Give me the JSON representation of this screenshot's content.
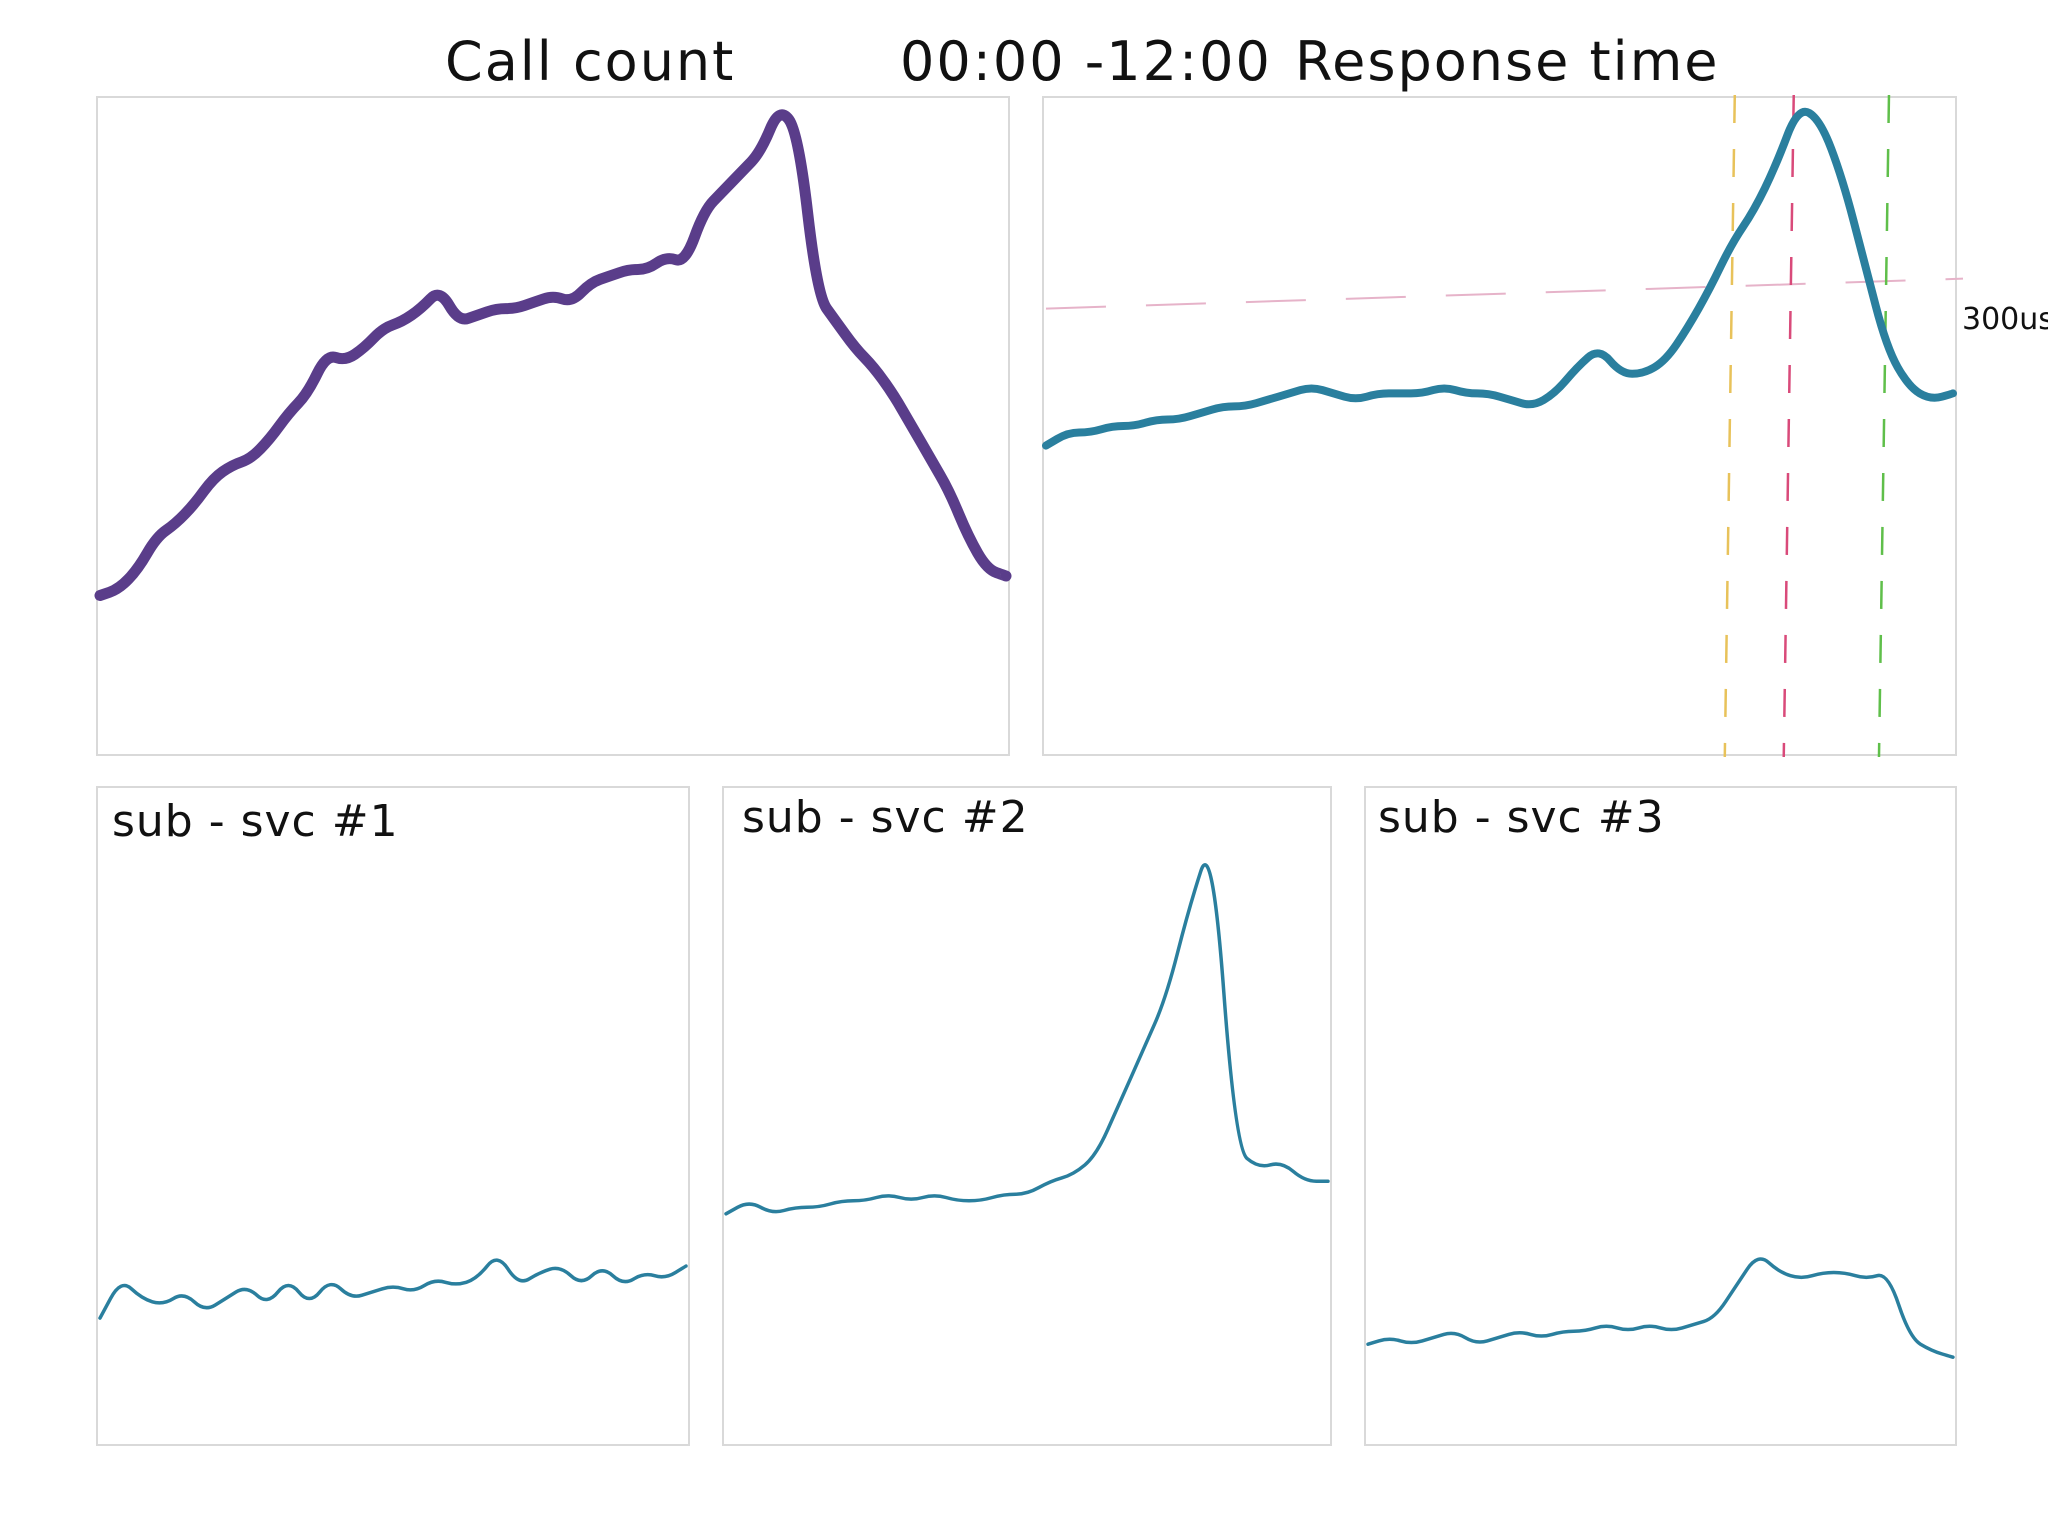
{
  "header": {
    "time_range": "00:00 -12:00"
  },
  "colors": {
    "call_count_line": "#5a3d8a",
    "response_line": "#2a7f9e",
    "threshold": "#e6b3c9",
    "marker_orange": "#e8c25a",
    "marker_pink": "#d94a7a",
    "marker_green": "#5fbf4a",
    "panel_border": "#d9d9d9"
  },
  "chart_data": [
    {
      "id": "call-count",
      "type": "line",
      "title": "Call count",
      "ylim": [
        0,
        100
      ],
      "series": [
        {
          "values": [
            24,
            25,
            28,
            33,
            35,
            38,
            42,
            44,
            45,
            48,
            52,
            55,
            61,
            60,
            62,
            65,
            66,
            68,
            71,
            66,
            67,
            68,
            68,
            69,
            70,
            69,
            72,
            73,
            74,
            74,
            76,
            75,
            83,
            86,
            89,
            92,
            99,
            95,
            70,
            66,
            62,
            59,
            55,
            50,
            45,
            40,
            33,
            28,
            27
          ]
        }
      ]
    },
    {
      "id": "response-time",
      "type": "line",
      "title": "Response time",
      "ylim": [
        0,
        100
      ],
      "threshold": {
        "value": 68,
        "label": "300us"
      },
      "markers": [
        {
          "x": 0.755,
          "color": "orange"
        },
        {
          "x": 0.82,
          "color": "pink"
        },
        {
          "x": 0.925,
          "color": "green"
        }
      ],
      "series": [
        {
          "values": [
            47,
            49,
            49,
            50,
            50,
            51,
            51,
            52,
            53,
            53,
            54,
            55,
            56,
            55,
            54,
            55,
            55,
            55,
            56,
            55,
            55,
            54,
            53,
            55,
            59,
            62,
            58,
            58,
            60,
            65,
            71,
            78,
            83,
            90,
            99,
            97,
            88,
            75,
            62,
            56,
            54,
            55
          ]
        }
      ]
    },
    {
      "id": "sub-svc-1",
      "type": "line",
      "title": "sub - svc #1",
      "ylim": [
        0,
        100
      ],
      "series": [
        {
          "values": [
            19,
            25,
            22,
            21,
            23,
            20,
            22,
            24,
            21,
            25,
            21,
            25,
            22,
            23,
            24,
            23,
            25,
            24,
            25,
            29,
            24,
            26,
            27,
            24,
            27,
            24,
            26,
            25,
            27
          ]
        }
      ]
    },
    {
      "id": "sub-svc-2",
      "type": "line",
      "title": "sub - svc #2",
      "ylim": [
        0,
        100
      ],
      "series": [
        {
          "values": [
            35,
            37,
            35,
            36,
            36,
            37,
            37,
            38,
            37,
            38,
            37,
            37,
            38,
            38,
            40,
            41,
            44,
            52,
            60,
            68,
            82,
            93,
            45,
            42,
            43,
            40,
            40
          ]
        }
      ]
    },
    {
      "id": "sub-svc-3",
      "type": "line",
      "title": "sub - svc #3",
      "ylim": [
        0,
        100
      ],
      "series": [
        {
          "values": [
            15,
            16,
            15,
            16,
            17,
            15,
            16,
            17,
            16,
            17,
            17,
            18,
            17,
            18,
            17,
            18,
            19,
            24,
            29,
            26,
            25,
            26,
            26,
            25,
            26,
            16,
            14,
            13
          ]
        }
      ]
    }
  ]
}
